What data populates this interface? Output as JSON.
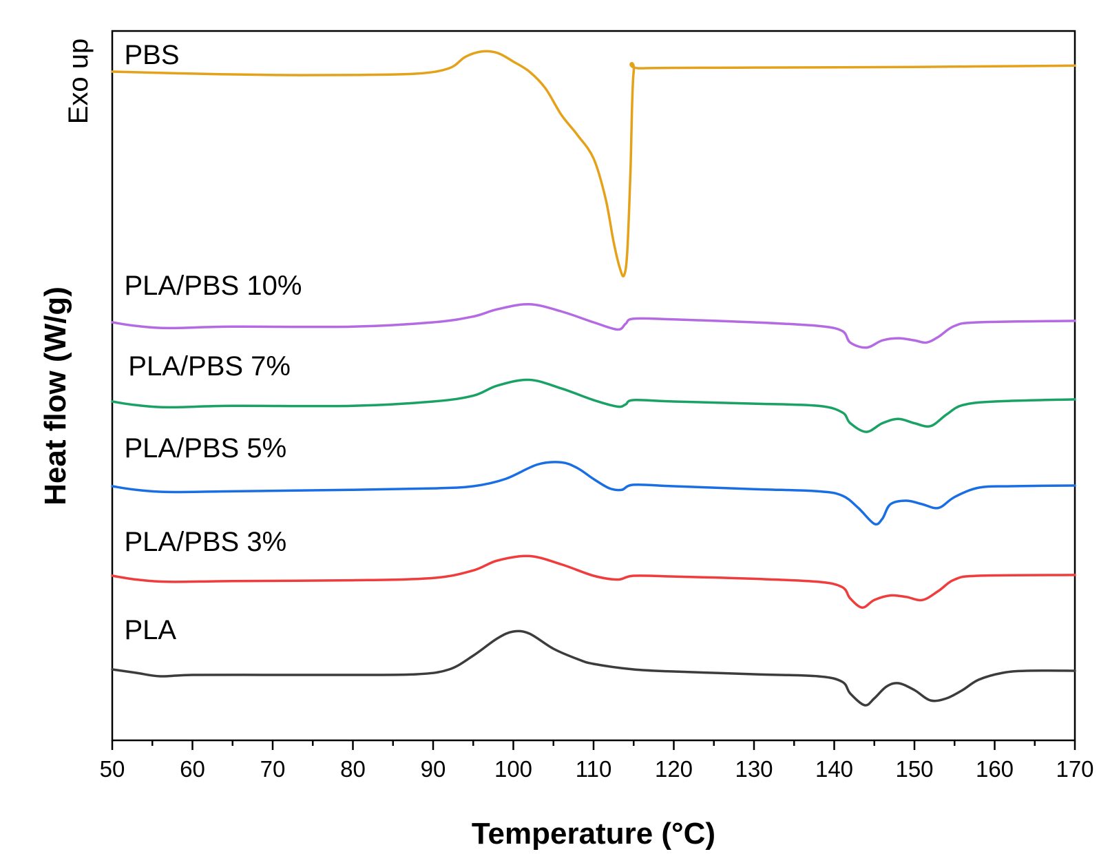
{
  "chart_data": {
    "type": "line",
    "title": "",
    "xlabel": "Temperature (°C)",
    "ylabel": "Heat flow (W/g)",
    "annotation": "Exo up",
    "xlim": [
      50,
      170
    ],
    "x_ticks": [
      "50",
      "60",
      "70",
      "80",
      "90",
      "100",
      "110",
      "120",
      "130",
      "140",
      "150",
      "160",
      "170"
    ],
    "y_ticks_shown": false,
    "grid": false,
    "legend": "inline labels above each curve",
    "y_units": "arbitrary (curves vertically offset)",
    "series": [
      {
        "name": "PBS",
        "color": "#e3a21a",
        "label_x": 51.5,
        "points": [
          [
            50,
            0.0
          ],
          [
            60,
            -0.03
          ],
          [
            70,
            -0.05
          ],
          [
            80,
            -0.05
          ],
          [
            88,
            -0.03
          ],
          [
            92,
            0.05
          ],
          [
            94,
            0.22
          ],
          [
            96,
            0.3
          ],
          [
            98,
            0.28
          ],
          [
            100,
            0.15
          ],
          [
            102,
            0.0
          ],
          [
            104,
            -0.25
          ],
          [
            106,
            -0.65
          ],
          [
            108,
            -0.95
          ],
          [
            110,
            -1.3
          ],
          [
            111.5,
            -1.9
          ],
          [
            112.5,
            -2.55
          ],
          [
            113.3,
            -2.95
          ],
          [
            113.8,
            -3.05
          ],
          [
            114.2,
            -2.7
          ],
          [
            114.6,
            -1.5
          ],
          [
            115,
            0.0
          ],
          [
            116,
            0.05
          ],
          [
            130,
            0.06
          ],
          [
            150,
            0.07
          ],
          [
            170,
            0.09
          ]
        ]
      },
      {
        "name": "PLA/PBS 10%",
        "color": "#b36ae2",
        "label_x": 51.5,
        "points": [
          [
            50,
            0.0
          ],
          [
            53,
            -0.05
          ],
          [
            57,
            -0.08
          ],
          [
            65,
            -0.06
          ],
          [
            80,
            -0.06
          ],
          [
            90,
            0.0
          ],
          [
            95,
            0.08
          ],
          [
            98,
            0.18
          ],
          [
            102,
            0.25
          ],
          [
            106,
            0.15
          ],
          [
            110,
            0.0
          ],
          [
            113,
            -0.1
          ],
          [
            114,
            -0.02
          ],
          [
            115,
            0.05
          ],
          [
            120,
            0.04
          ],
          [
            130,
            0.0
          ],
          [
            138,
            -0.05
          ],
          [
            141,
            -0.12
          ],
          [
            142,
            -0.28
          ],
          [
            144,
            -0.35
          ],
          [
            146,
            -0.25
          ],
          [
            148,
            -0.22
          ],
          [
            150,
            -0.25
          ],
          [
            151.5,
            -0.28
          ],
          [
            153,
            -0.2
          ],
          [
            155,
            -0.05
          ],
          [
            158,
            0.0
          ],
          [
            170,
            0.02
          ]
        ]
      },
      {
        "name": "PLA/PBS 7%",
        "color": "#1aa164",
        "label_x": 52,
        "points": [
          [
            50,
            0.0
          ],
          [
            53,
            -0.05
          ],
          [
            57,
            -0.08
          ],
          [
            65,
            -0.06
          ],
          [
            80,
            -0.06
          ],
          [
            90,
            0.0
          ],
          [
            95,
            0.08
          ],
          [
            98,
            0.22
          ],
          [
            102,
            0.3
          ],
          [
            106,
            0.18
          ],
          [
            110,
            0.02
          ],
          [
            113,
            -0.07
          ],
          [
            114,
            -0.04
          ],
          [
            115,
            0.02
          ],
          [
            120,
            0.0
          ],
          [
            130,
            -0.03
          ],
          [
            138,
            -0.06
          ],
          [
            141,
            -0.15
          ],
          [
            142,
            -0.3
          ],
          [
            144,
            -0.42
          ],
          [
            146,
            -0.3
          ],
          [
            148,
            -0.24
          ],
          [
            150,
            -0.3
          ],
          [
            152,
            -0.34
          ],
          [
            154,
            -0.18
          ],
          [
            156,
            -0.05
          ],
          [
            160,
            0.0
          ],
          [
            170,
            0.03
          ]
        ]
      },
      {
        "name": "PLA/PBS 5%",
        "color": "#1a6ee3",
        "label_x": 51.5,
        "points": [
          [
            50,
            0.0
          ],
          [
            53,
            -0.05
          ],
          [
            57,
            -0.08
          ],
          [
            65,
            -0.07
          ],
          [
            80,
            -0.05
          ],
          [
            90,
            -0.03
          ],
          [
            95,
            0.0
          ],
          [
            99,
            0.1
          ],
          [
            103,
            0.3
          ],
          [
            106,
            0.33
          ],
          [
            108,
            0.25
          ],
          [
            110,
            0.1
          ],
          [
            112,
            -0.03
          ],
          [
            113.5,
            -0.05
          ],
          [
            115,
            0.02
          ],
          [
            120,
            0.0
          ],
          [
            130,
            -0.04
          ],
          [
            138,
            -0.07
          ],
          [
            141,
            -0.13
          ],
          [
            143,
            -0.3
          ],
          [
            145,
            -0.52
          ],
          [
            146,
            -0.45
          ],
          [
            147,
            -0.25
          ],
          [
            149,
            -0.2
          ],
          [
            151,
            -0.25
          ],
          [
            153,
            -0.3
          ],
          [
            155,
            -0.15
          ],
          [
            158,
            -0.02
          ],
          [
            162,
            0.0
          ],
          [
            170,
            0.01
          ]
        ]
      },
      {
        "name": "PLA/PBS 3%",
        "color": "#f03c3c",
        "label_x": 51.5,
        "points": [
          [
            50,
            0.0
          ],
          [
            53,
            -0.05
          ],
          [
            57,
            -0.08
          ],
          [
            65,
            -0.07
          ],
          [
            80,
            -0.06
          ],
          [
            90,
            -0.03
          ],
          [
            95,
            0.07
          ],
          [
            98,
            0.2
          ],
          [
            102,
            0.26
          ],
          [
            106,
            0.15
          ],
          [
            110,
            0.0
          ],
          [
            113,
            -0.05
          ],
          [
            115,
            0.0
          ],
          [
            120,
            -0.01
          ],
          [
            130,
            -0.04
          ],
          [
            138,
            -0.08
          ],
          [
            141,
            -0.15
          ],
          [
            142,
            -0.3
          ],
          [
            143.5,
            -0.42
          ],
          [
            145,
            -0.32
          ],
          [
            147,
            -0.26
          ],
          [
            149,
            -0.28
          ],
          [
            151,
            -0.32
          ],
          [
            153,
            -0.2
          ],
          [
            155,
            -0.05
          ],
          [
            158,
            0.0
          ],
          [
            170,
            0.01
          ]
        ]
      },
      {
        "name": "PLA",
        "color": "#3c3c3c",
        "label_x": 51.5,
        "points": [
          [
            50,
            0.0
          ],
          [
            53,
            -0.05
          ],
          [
            56,
            -0.1
          ],
          [
            60,
            -0.08
          ],
          [
            70,
            -0.08
          ],
          [
            80,
            -0.08
          ],
          [
            88,
            -0.07
          ],
          [
            92,
            0.0
          ],
          [
            95,
            0.2
          ],
          [
            98,
            0.45
          ],
          [
            100,
            0.55
          ],
          [
            102,
            0.52
          ],
          [
            105,
            0.3
          ],
          [
            108,
            0.15
          ],
          [
            110,
            0.08
          ],
          [
            115,
            0.0
          ],
          [
            120,
            -0.03
          ],
          [
            130,
            -0.07
          ],
          [
            138,
            -0.1
          ],
          [
            141,
            -0.18
          ],
          [
            142,
            -0.35
          ],
          [
            143.8,
            -0.52
          ],
          [
            145,
            -0.42
          ],
          [
            146.5,
            -0.25
          ],
          [
            148,
            -0.2
          ],
          [
            150,
            -0.3
          ],
          [
            152,
            -0.45
          ],
          [
            154,
            -0.42
          ],
          [
            156,
            -0.3
          ],
          [
            158,
            -0.15
          ],
          [
            161,
            -0.05
          ],
          [
            164,
            -0.02
          ],
          [
            170,
            -0.02
          ]
        ]
      }
    ]
  }
}
